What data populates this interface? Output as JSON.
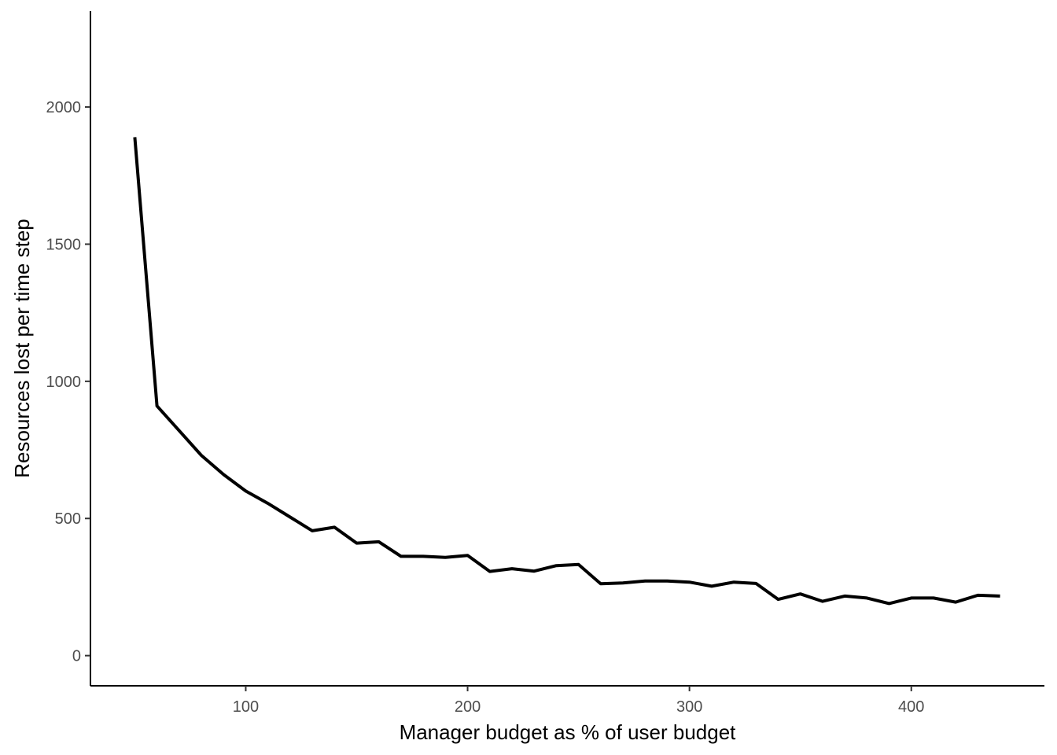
{
  "chart_data": {
    "type": "line",
    "title": "",
    "xlabel": "Manager budget as % of user budget",
    "ylabel": "Resources lost per time step",
    "xlim": [
      30,
      460
    ],
    "ylim": [
      -110,
      2350
    ],
    "xticks": [
      100,
      200,
      300,
      400
    ],
    "yticks": [
      0,
      500,
      1000,
      1500,
      2000
    ],
    "grid": false,
    "line_color": "#000000",
    "series": [
      {
        "x": [
          50,
          60,
          70,
          80,
          90,
          100,
          110,
          120,
          130,
          140,
          150,
          160,
          170,
          180,
          190,
          200,
          210,
          220,
          230,
          240,
          250,
          260,
          270,
          280,
          290,
          300,
          310,
          320,
          330,
          340,
          350,
          360,
          370,
          380,
          390,
          400,
          410,
          420,
          430,
          440
        ],
        "y": [
          1890,
          910,
          820,
          730,
          660,
          600,
          555,
          505,
          455,
          468,
          410,
          415,
          362,
          362,
          358,
          365,
          307,
          317,
          308,
          328,
          332,
          262,
          265,
          272,
          272,
          268,
          253,
          268,
          263,
          205,
          225,
          198,
          217,
          210,
          190,
          210,
          210,
          195,
          220,
          217
        ]
      }
    ]
  }
}
